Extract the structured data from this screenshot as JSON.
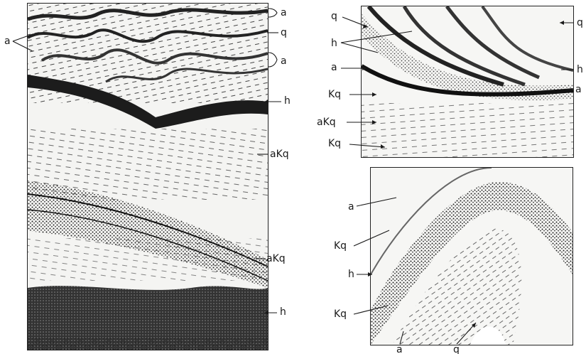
{
  "figure": {
    "left_panel": {
      "labels": [
        "a",
        "q",
        "a",
        "h",
        "aKq",
        "aKq",
        "h"
      ]
    },
    "top_right_panel": {
      "labels": [
        "q",
        "h",
        "q",
        "a",
        "h",
        "a",
        "Kq",
        "aKq",
        "Kq"
      ]
    },
    "bottom_right_panel": {
      "labels": [
        "a",
        "Kq",
        "h",
        "Kq",
        "a",
        "q"
      ]
    }
  },
  "colors": {
    "ink": "#1a1a1a",
    "paper": "#f4f4f2",
    "frame": "#222222"
  }
}
